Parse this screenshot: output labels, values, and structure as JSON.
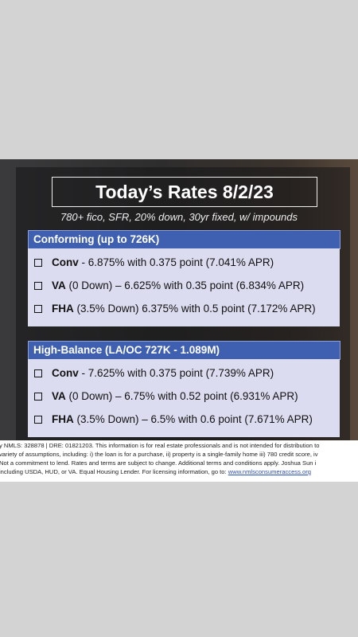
{
  "header": {
    "title": "Today’s Rates 8/2/23",
    "subtitle": "780+ fico, SFR, 20% down, 30yr fixed, w/ impounds"
  },
  "sections": [
    {
      "title": "Conforming (up to 726K)",
      "rows": [
        {
          "label": "Conv",
          "text": " - 6.875% with 0.375 point (7.041% APR)"
        },
        {
          "label": "VA",
          "text": " (0 Down) – 6.625% with 0.35 point (6.834% APR)"
        },
        {
          "label": "FHA",
          "text": " (3.5% Down) 6.375% with 0.5 point (7.172% APR)"
        }
      ]
    },
    {
      "title": "High-Balance (LA/OC 727K - 1.089M)",
      "rows": [
        {
          "label": "Conv",
          "text": " - 7.625% with 0.375 point (7.739% APR)"
        },
        {
          "label": "VA",
          "text": " (0 Down) – 6.75% with 0.52 point (6.931% APR)"
        },
        {
          "label": "FHA",
          "text": " (3.5% Down) – 6.5% with 0.6 point (7.671% APR)"
        }
      ]
    }
  ],
  "disclaimer": {
    "lines": [
      "y NMLS: 328878 | DRE: 01821203. This information is for real estate professionals and is not intended for distribution to",
      "variety of assumptions, including: i) the loan is for a purchase, ii) property is a single-family home iii) 780 credit score, iv",
      "Not a commitment to lend. Rates and terms are subject to change. Additional terms and conditions apply. Joshua Sun i",
      "including USDA, HUD, or VA. Equal Housing Lender. For licensing information, go to: "
    ],
    "link": "www.nmlsconsumeraccess.org"
  }
}
